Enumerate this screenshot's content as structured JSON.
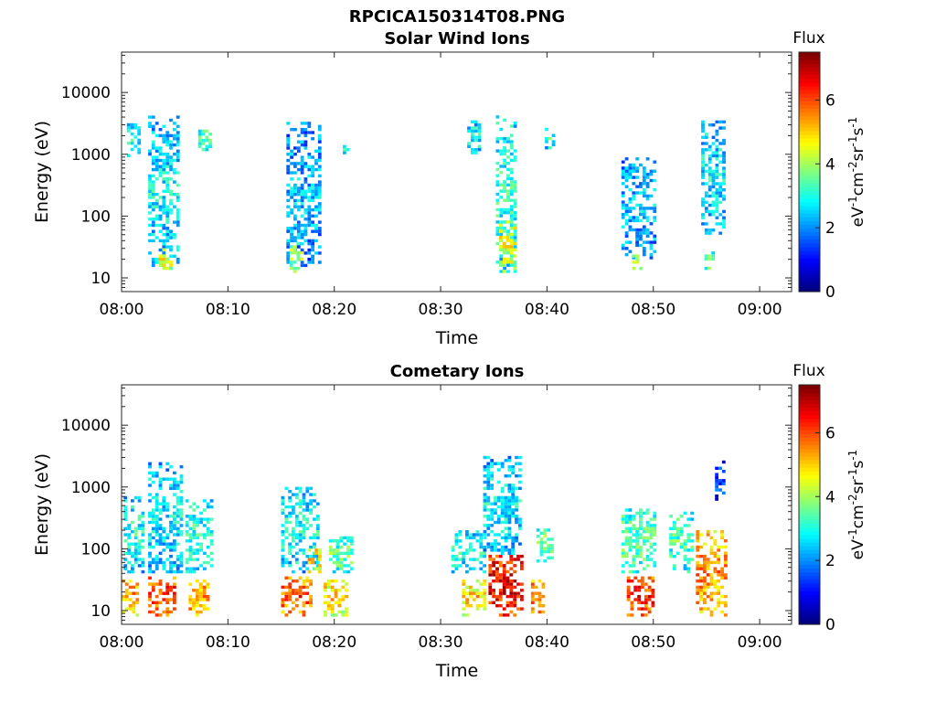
{
  "figure": {
    "title": "RPCICA150314T08.PNG"
  },
  "chart_data": [
    {
      "type": "heatmap",
      "title": "Solar Wind Ions",
      "xlabel": "Time",
      "ylabel": "Energy (eV)",
      "x_ticks": [
        "08:00",
        "08:10",
        "08:20",
        "08:30",
        "08:40",
        "08:50",
        "09:00"
      ],
      "x_range_minutes": [
        0,
        63
      ],
      "y_scale": "log",
      "y_ticks": [
        "10",
        "100",
        "1000",
        "10000"
      ],
      "y_range": [
        6,
        45000
      ],
      "colorbar": {
        "title": "Flux",
        "label": "eV-1cm-2sr-1s-1",
        "range": [
          0,
          7.5
        ],
        "ticks": [
          "0",
          "2",
          "4",
          "6"
        ],
        "colormap": "jet"
      },
      "bursts": [
        {
          "t_start_min": 0.5,
          "t_end_min": 1.5,
          "e_low": 800,
          "e_high": 3000,
          "flux": 3.0
        },
        {
          "t_start_min": 2.5,
          "t_end_min": 5.2,
          "e_low": 15,
          "e_high": 4000,
          "flux": 2.8
        },
        {
          "t_start_min": 3.5,
          "t_end_min": 4.5,
          "e_low": 12,
          "e_high": 30,
          "flux": 4.6
        },
        {
          "t_start_min": 7.2,
          "t_end_min": 8.5,
          "e_low": 1000,
          "e_high": 2500,
          "flux": 3.6
        },
        {
          "t_start_min": 15.5,
          "t_end_min": 18.5,
          "e_low": 15,
          "e_high": 3000,
          "flux": 2.4
        },
        {
          "t_start_min": 15.8,
          "t_end_min": 16.8,
          "e_low": 12,
          "e_high": 35,
          "flux": 4.2
        },
        {
          "t_start_min": 20.8,
          "t_end_min": 21.3,
          "e_low": 1000,
          "e_high": 1600,
          "flux": 3.2
        },
        {
          "t_start_min": 32.5,
          "t_end_min": 33.5,
          "e_low": 1000,
          "e_high": 3500,
          "flux": 3.0
        },
        {
          "t_start_min": 35.2,
          "t_end_min": 37.0,
          "e_low": 12,
          "e_high": 4000,
          "flux": 3.2
        },
        {
          "t_start_min": 35.5,
          "t_end_min": 37.0,
          "e_low": 12,
          "e_high": 80,
          "flux": 4.6
        },
        {
          "t_start_min": 39.8,
          "t_end_min": 40.5,
          "e_low": 1200,
          "e_high": 2500,
          "flux": 3.2
        },
        {
          "t_start_min": 47.0,
          "t_end_min": 50.0,
          "e_low": 20,
          "e_high": 800,
          "flux": 2.4
        },
        {
          "t_start_min": 48.0,
          "t_end_min": 48.8,
          "e_low": 12,
          "e_high": 30,
          "flux": 4.0
        },
        {
          "t_start_min": 54.5,
          "t_end_min": 56.5,
          "e_low": 50,
          "e_high": 3500,
          "flux": 2.8
        },
        {
          "t_start_min": 54.8,
          "t_end_min": 55.5,
          "e_low": 12,
          "e_high": 25,
          "flux": 3.8
        }
      ]
    },
    {
      "type": "heatmap",
      "title": "Cometary Ions",
      "xlabel": "Time",
      "ylabel": "Energy (eV)",
      "x_ticks": [
        "08:00",
        "08:10",
        "08:20",
        "08:30",
        "08:40",
        "08:50",
        "09:00"
      ],
      "x_range_minutes": [
        0,
        63
      ],
      "y_scale": "log",
      "y_ticks": [
        "10",
        "100",
        "1000",
        "10000"
      ],
      "y_range": [
        6,
        45000
      ],
      "colorbar": {
        "title": "Flux",
        "label": "eV-1cm-2sr-1s-1",
        "range": [
          0,
          7.5
        ],
        "ticks": [
          "0",
          "2",
          "4",
          "6"
        ],
        "colormap": "jet"
      },
      "bursts": [
        {
          "t_start_min": 0.0,
          "t_end_min": 1.5,
          "e_low": 8,
          "e_high": 30,
          "flux": 5.5
        },
        {
          "t_start_min": 0.2,
          "t_end_min": 2.0,
          "e_low": 40,
          "e_high": 700,
          "flux": 3.0
        },
        {
          "t_start_min": 2.5,
          "t_end_min": 5.0,
          "e_low": 8,
          "e_high": 35,
          "flux": 6.2
        },
        {
          "t_start_min": 2.5,
          "t_end_min": 5.5,
          "e_low": 40,
          "e_high": 2500,
          "flux": 2.8
        },
        {
          "t_start_min": 6.3,
          "t_end_min": 8.0,
          "e_low": 8,
          "e_high": 30,
          "flux": 5.6
        },
        {
          "t_start_min": 6.0,
          "t_end_min": 8.5,
          "e_low": 40,
          "e_high": 600,
          "flux": 3.2
        },
        {
          "t_start_min": 15.0,
          "t_end_min": 17.8,
          "e_low": 8,
          "e_high": 35,
          "flux": 6.0
        },
        {
          "t_start_min": 15.0,
          "t_end_min": 18.5,
          "e_low": 40,
          "e_high": 1000,
          "flux": 3.0
        },
        {
          "t_start_min": 17.5,
          "t_end_min": 18.5,
          "e_low": 40,
          "e_high": 100,
          "flux": 5.2
        },
        {
          "t_start_min": 19.0,
          "t_end_min": 21.0,
          "e_low": 8,
          "e_high": 30,
          "flux": 5.0
        },
        {
          "t_start_min": 19.5,
          "t_end_min": 21.5,
          "e_low": 40,
          "e_high": 150,
          "flux": 3.6
        },
        {
          "t_start_min": 32.0,
          "t_end_min": 34.0,
          "e_low": 8,
          "e_high": 30,
          "flux": 5.0
        },
        {
          "t_start_min": 31.0,
          "t_end_min": 34.0,
          "e_low": 40,
          "e_high": 200,
          "flux": 3.0
        },
        {
          "t_start_min": 34.5,
          "t_end_min": 37.5,
          "e_low": 8,
          "e_high": 80,
          "flux": 6.8
        },
        {
          "t_start_min": 34.0,
          "t_end_min": 37.5,
          "e_low": 80,
          "e_high": 3000,
          "flux": 2.8
        },
        {
          "t_start_min": 39.0,
          "t_end_min": 40.5,
          "e_low": 60,
          "e_high": 200,
          "flux": 3.8
        },
        {
          "t_start_min": 38.5,
          "t_end_min": 39.5,
          "e_low": 8,
          "e_high": 30,
          "flux": 6.0
        },
        {
          "t_start_min": 47.5,
          "t_end_min": 50.0,
          "e_low": 8,
          "e_high": 35,
          "flux": 6.4
        },
        {
          "t_start_min": 47.0,
          "t_end_min": 50.0,
          "e_low": 40,
          "e_high": 400,
          "flux": 3.6
        },
        {
          "t_start_min": 51.5,
          "t_end_min": 53.5,
          "e_low": 40,
          "e_high": 400,
          "flux": 3.4
        },
        {
          "t_start_min": 54.0,
          "t_end_min": 56.8,
          "e_low": 8,
          "e_high": 200,
          "flux": 5.6
        },
        {
          "t_start_min": 55.8,
          "t_end_min": 56.5,
          "e_low": 600,
          "e_high": 2500,
          "flux": 1.6
        }
      ]
    }
  ]
}
